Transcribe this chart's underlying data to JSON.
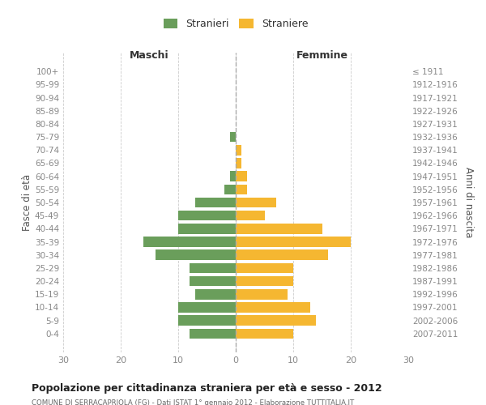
{
  "age_groups": [
    "100+",
    "95-99",
    "90-94",
    "85-89",
    "80-84",
    "75-79",
    "70-74",
    "65-69",
    "60-64",
    "55-59",
    "50-54",
    "45-49",
    "40-44",
    "35-39",
    "30-34",
    "25-29",
    "20-24",
    "15-19",
    "10-14",
    "5-9",
    "0-4"
  ],
  "birth_years": [
    "≤ 1911",
    "1912-1916",
    "1917-1921",
    "1922-1926",
    "1927-1931",
    "1932-1936",
    "1937-1941",
    "1942-1946",
    "1947-1951",
    "1952-1956",
    "1957-1961",
    "1962-1966",
    "1967-1971",
    "1972-1976",
    "1977-1981",
    "1982-1986",
    "1987-1991",
    "1992-1996",
    "1997-2001",
    "2002-2006",
    "2007-2011"
  ],
  "males": [
    0,
    0,
    0,
    0,
    0,
    1,
    0,
    0,
    1,
    2,
    7,
    10,
    10,
    16,
    14,
    8,
    8,
    7,
    10,
    10,
    8
  ],
  "females": [
    0,
    0,
    0,
    0,
    0,
    0,
    1,
    1,
    2,
    2,
    7,
    5,
    15,
    20,
    16,
    10,
    10,
    9,
    13,
    14,
    10
  ],
  "male_color": "#6a9e5b",
  "female_color": "#f5b731",
  "bar_height": 0.78,
  "xlim": 30,
  "title": "Popolazione per cittadinanza straniera per età e sesso - 2012",
  "subtitle": "COMUNE DI SERRACAPRIOLA (FG) - Dati ISTAT 1° gennaio 2012 - Elaborazione TUTTITALIA.IT",
  "ylabel_left": "Fasce di età",
  "ylabel_right": "Anni di nascita",
  "label_males": "Stranieri",
  "label_females": "Straniere",
  "header_maschi": "Maschi",
  "header_femmine": "Femmine",
  "bg_color": "#ffffff",
  "grid_color": "#cccccc",
  "tick_color": "#888888"
}
